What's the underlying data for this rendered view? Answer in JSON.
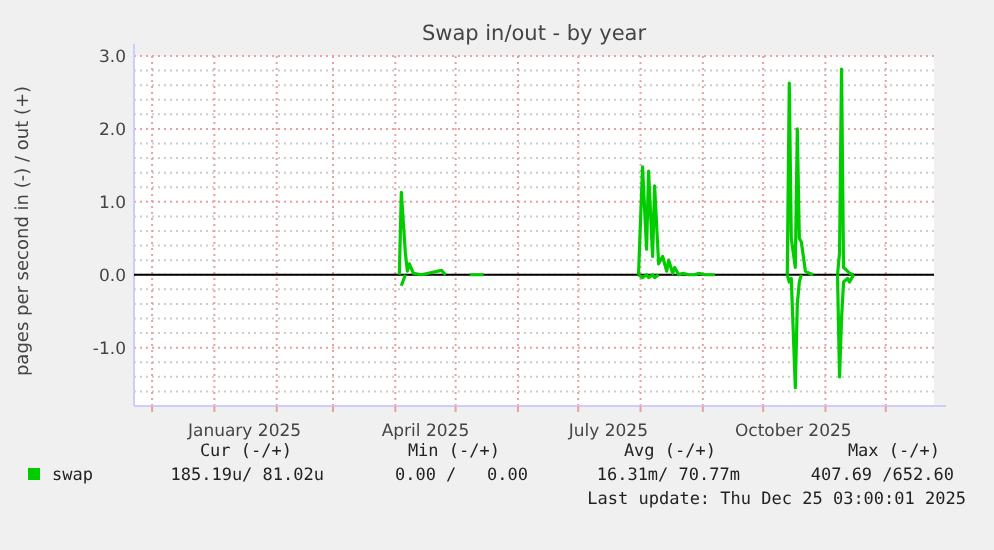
{
  "chart_data": {
    "type": "line",
    "title": "Swap in/out - by year",
    "ylabel": "pages per second in (-) / out (+)",
    "x": [
      "2025-04-03",
      "2025-04-04",
      "2025-04-06",
      "2025-04-07",
      "2025-04-08",
      "2025-04-10",
      "2025-04-14",
      "2025-04-24",
      "2025-04-26",
      "2025-05-02",
      "2025-05-08",
      "2025-05-15",
      "2025-07-20",
      "2025-07-31",
      "2025-08-02",
      "2025-08-04",
      "2025-08-05",
      "2025-08-07",
      "2025-08-08",
      "2025-08-10",
      "2025-08-12",
      "2025-08-14",
      "2025-08-15",
      "2025-08-17",
      "2025-08-18",
      "2025-08-20",
      "2025-08-22",
      "2025-08-25",
      "2025-08-28",
      "2025-08-30",
      "2025-09-02",
      "2025-09-05",
      "2025-09-07",
      "2025-09-25",
      "2025-10-13",
      "2025-10-14",
      "2025-10-15",
      "2025-10-17",
      "2025-10-18",
      "2025-10-19",
      "2025-10-20",
      "2025-10-22",
      "2025-10-24",
      "2025-10-26",
      "2025-10-29",
      "2025-11-07",
      "2025-11-08",
      "2025-11-09",
      "2025-11-10",
      "2025-11-12",
      "2025-11-13",
      "2025-11-15"
    ],
    "series": [
      {
        "name": "swap",
        "color": "#00cc00",
        "values": [
          0,
          1.13,
          0.3,
          0.05,
          0.15,
          0.02,
          0,
          0.06,
          0,
          null,
          0,
          0,
          null,
          0,
          1.48,
          0.35,
          1.42,
          0.25,
          1.22,
          0.15,
          0.25,
          0.05,
          0.2,
          0.02,
          0.1,
          0,
          0.02,
          0,
          0,
          0.02,
          0,
          0,
          0,
          null,
          0,
          2.63,
          0.5,
          0.1,
          2.0,
          0.5,
          0.45,
          0.05,
          0.02,
          0,
          null,
          0,
          0.3,
          2.82,
          0.1,
          0.05,
          0.02,
          0
        ]
      },
      {
        "color": "#00cc00",
        "values": [
          null,
          -0.15,
          0,
          null,
          null,
          null,
          null,
          null,
          null,
          null,
          null,
          null,
          null,
          0,
          -0.04,
          0,
          -0.04,
          0,
          -0.04,
          0,
          null,
          null,
          null,
          null,
          null,
          null,
          null,
          null,
          null,
          null,
          null,
          null,
          null,
          null,
          0,
          -0.1,
          -0.05,
          -1.55,
          -0.4,
          -0.1,
          0,
          null,
          null,
          null,
          null,
          0,
          -1.4,
          -0.6,
          -0.1,
          -0.05,
          -0.1,
          0
        ]
      }
    ],
    "xlim": [
      "2024-11-22",
      "2025-12-25"
    ],
    "xticks": [
      {
        "value": "2024-12-01",
        "label": null
      },
      {
        "value": "2025-01-01",
        "label": null
      },
      {
        "value": "2025-01-16",
        "label": "January 2025"
      },
      {
        "value": "2025-02-01",
        "label": null
      },
      {
        "value": "2025-03-01",
        "label": null
      },
      {
        "value": "2025-04-01",
        "label": null
      },
      {
        "value": "2025-04-16",
        "label": "April 2025"
      },
      {
        "value": "2025-05-01",
        "label": null
      },
      {
        "value": "2025-06-01",
        "label": null
      },
      {
        "value": "2025-07-01",
        "label": null
      },
      {
        "value": "2025-07-16",
        "label": "July 2025"
      },
      {
        "value": "2025-08-01",
        "label": null
      },
      {
        "value": "2025-09-01",
        "label": null
      },
      {
        "value": "2025-10-01",
        "label": null
      },
      {
        "value": "2025-10-16",
        "label": "October 2025"
      },
      {
        "value": "2025-11-01",
        "label": null
      },
      {
        "value": "2025-12-01",
        "label": null
      }
    ],
    "ylim": [
      -1.8,
      3.0
    ],
    "yticks": [
      {
        "value": -1.6,
        "label": null
      },
      {
        "value": -1.4,
        "label": null
      },
      {
        "value": -1.2,
        "label": null
      },
      {
        "value": -1,
        "label": "-1.0"
      },
      {
        "value": -0.8,
        "label": null
      },
      {
        "value": -0.6,
        "label": null
      },
      {
        "value": -0.4,
        "label": null
      },
      {
        "value": -0.2,
        "label": null
      },
      {
        "value": 0,
        "label": "0.0"
      },
      {
        "value": 0.2,
        "label": null
      },
      {
        "value": 0.4,
        "label": null
      },
      {
        "value": 0.6,
        "label": null
      },
      {
        "value": 0.8,
        "label": null
      },
      {
        "value": 1,
        "label": "1.0"
      },
      {
        "value": 1.2,
        "label": null
      },
      {
        "value": 1.4,
        "label": null
      },
      {
        "value": 1.6,
        "label": null
      },
      {
        "value": 1.8,
        "label": null
      },
      {
        "value": 2,
        "label": "2.0"
      },
      {
        "value": 2.2,
        "label": null
      },
      {
        "value": 2.4,
        "label": null
      },
      {
        "value": 2.6,
        "label": null
      },
      {
        "value": 2.8,
        "label": null
      },
      {
        "value": 3,
        "label": "3.0"
      }
    ],
    "grid": true,
    "legend": "bottom",
    "line_style": "solid",
    "marker": "none",
    "ref_lines": [
      {
        "axis": "y",
        "value": 0,
        "color": "#000000"
      }
    ],
    "annotations": [
      "Cur (-/+)",
      "Min (-/+)",
      "Avg (-/+)",
      "Max (-/+)",
      "185.19u/ 81.02u",
      "0.00 /   0.00",
      "16.31m/ 70.77m",
      "407.69 /652.60",
      "Last update: Thu Dec 25 03:00:01 2025"
    ]
  }
}
